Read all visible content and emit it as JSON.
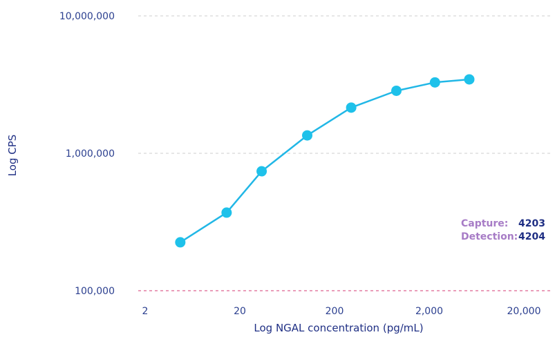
{
  "chart_data": {
    "type": "line",
    "xlabel": "Log NGAL concentration (pg/mL)",
    "ylabel": "Log CPS",
    "x_scale": "log",
    "y_scale": "log",
    "xlim": [
      2,
      20000
    ],
    "ylim": [
      100000,
      10000000
    ],
    "x_ticks": [
      {
        "value": 2,
        "label": "2"
      },
      {
        "value": 20,
        "label": "20"
      },
      {
        "value": 200,
        "label": "200"
      },
      {
        "value": 2000,
        "label": "2,000"
      },
      {
        "value": 20000,
        "label": "20,000"
      }
    ],
    "y_ticks": [
      {
        "value": 100000,
        "label": "100,000"
      },
      {
        "value": 1000000,
        "label": "1,000,000"
      },
      {
        "value": 10000000,
        "label": "10,000,000"
      }
    ],
    "grid": "horizontal dashed",
    "series": [
      {
        "x": [
          4.7,
          14.5,
          34,
          103,
          300,
          900,
          2300,
          5300
        ],
        "y": [
          225000,
          370000,
          740000,
          1350000,
          2150000,
          2850000,
          3280000,
          3450000
        ]
      }
    ],
    "annotation": {
      "rows": [
        {
          "key": "Capture:",
          "value": "4203"
        },
        {
          "key": "Detection:",
          "value": "4204"
        }
      ]
    }
  },
  "colors": {
    "line": "#21b7e6",
    "marker": "#1ec1ea",
    "axis_text": "#2b3f8f",
    "grid": "#cccccc",
    "baseline": "#d63a73",
    "legend_key": "#a77cc6",
    "legend_value": "#1f2f84"
  }
}
